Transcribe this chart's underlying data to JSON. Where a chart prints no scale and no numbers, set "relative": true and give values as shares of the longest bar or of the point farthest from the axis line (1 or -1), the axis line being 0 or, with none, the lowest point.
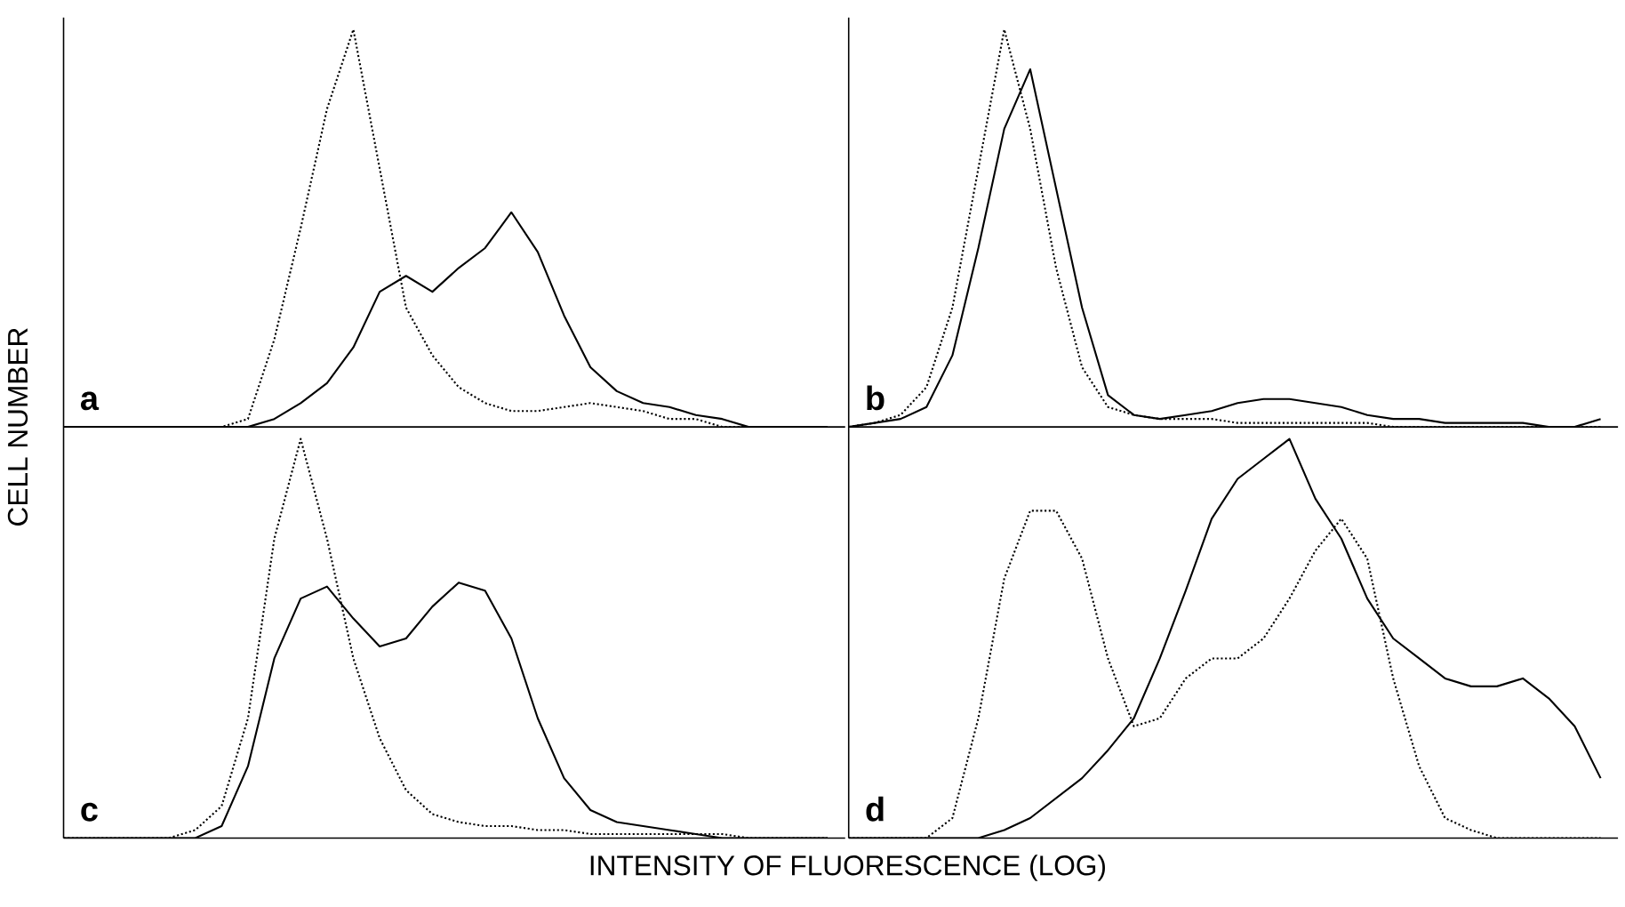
{
  "chart_data": [
    {
      "type": "line",
      "relative": true,
      "ylabel": "CELL NUMBER",
      "annotations": [
        "a"
      ],
      "categories": [
        null,
        null,
        null,
        null,
        null,
        null,
        null,
        null,
        null,
        null,
        null,
        null,
        null,
        null,
        null,
        null,
        null,
        null,
        null,
        null,
        null,
        null,
        null,
        null,
        null,
        null,
        null,
        null,
        null,
        null
      ],
      "series": [
        {
          "color": "#000000",
          "line_style": "dotted",
          "values": [
            0,
            0,
            0,
            0,
            0,
            0,
            0,
            0.02,
            0.22,
            0.5,
            0.8,
            1.0,
            0.65,
            0.3,
            0.18,
            0.1,
            0.06,
            0.04,
            0.04,
            0.05,
            0.06,
            0.05,
            0.04,
            0.02,
            0.02,
            0,
            0,
            0,
            0,
            0
          ]
        },
        {
          "color": "#000000",
          "line_style": "solid",
          "values": [
            0,
            0,
            0,
            0,
            0,
            0,
            0,
            0,
            0.02,
            0.06,
            0.11,
            0.2,
            0.34,
            0.38,
            0.34,
            0.4,
            0.45,
            0.54,
            0.44,
            0.28,
            0.15,
            0.09,
            0.06,
            0.05,
            0.03,
            0.02,
            0,
            0,
            0,
            0
          ]
        }
      ]
    },
    {
      "type": "line",
      "relative": true,
      "annotations": [
        "b"
      ],
      "categories": [
        null,
        null,
        null,
        null,
        null,
        null,
        null,
        null,
        null,
        null,
        null,
        null,
        null,
        null,
        null,
        null,
        null,
        null,
        null,
        null,
        null,
        null,
        null,
        null,
        null,
        null,
        null,
        null,
        null,
        null
      ],
      "series": [
        {
          "color": "#000000",
          "line_style": "dotted",
          "values": [
            0,
            0.01,
            0.03,
            0.1,
            0.3,
            0.65,
            1.0,
            0.75,
            0.4,
            0.15,
            0.05,
            0.03,
            0.02,
            0.02,
            0.02,
            0.01,
            0.01,
            0.01,
            0.01,
            0.01,
            0.01,
            0,
            0,
            0,
            0,
            0,
            0,
            0,
            0,
            0
          ]
        },
        {
          "color": "#000000",
          "line_style": "solid",
          "values": [
            0,
            0.01,
            0.02,
            0.05,
            0.18,
            0.45,
            0.75,
            0.9,
            0.6,
            0.3,
            0.08,
            0.03,
            0.02,
            0.03,
            0.04,
            0.06,
            0.07,
            0.07,
            0.06,
            0.05,
            0.03,
            0.02,
            0.02,
            0.01,
            0.01,
            0.01,
            0.01,
            0,
            0,
            0.02
          ]
        }
      ]
    },
    {
      "type": "line",
      "relative": true,
      "xlabel": "INTENSITY OF FLUORESCENCE (LOG)",
      "annotations": [
        "c"
      ],
      "categories": [
        null,
        null,
        null,
        null,
        null,
        null,
        null,
        null,
        null,
        null,
        null,
        null,
        null,
        null,
        null,
        null,
        null,
        null,
        null,
        null,
        null,
        null,
        null,
        null,
        null,
        null,
        null,
        null,
        null,
        null
      ],
      "series": [
        {
          "color": "#000000",
          "line_style": "dotted",
          "values": [
            0,
            0,
            0,
            0,
            0,
            0.02,
            0.08,
            0.3,
            0.75,
            1.0,
            0.75,
            0.45,
            0.25,
            0.12,
            0.06,
            0.04,
            0.03,
            0.03,
            0.02,
            0.02,
            0.01,
            0.01,
            0.01,
            0.01,
            0.01,
            0.01,
            0,
            0,
            0,
            0
          ]
        },
        {
          "color": "#000000",
          "line_style": "solid",
          "values": [
            0,
            0,
            0,
            0,
            0,
            0,
            0.03,
            0.18,
            0.45,
            0.6,
            0.63,
            0.55,
            0.48,
            0.5,
            0.58,
            0.64,
            0.62,
            0.5,
            0.3,
            0.15,
            0.07,
            0.04,
            0.03,
            0.02,
            0.01,
            0,
            0,
            0,
            0,
            0
          ]
        }
      ]
    },
    {
      "type": "line",
      "relative": true,
      "annotations": [
        "d"
      ],
      "categories": [
        null,
        null,
        null,
        null,
        null,
        null,
        null,
        null,
        null,
        null,
        null,
        null,
        null,
        null,
        null,
        null,
        null,
        null,
        null,
        null,
        null,
        null,
        null,
        null,
        null,
        null,
        null,
        null,
        null,
        null
      ],
      "series": [
        {
          "color": "#000000",
          "line_style": "dotted",
          "values": [
            0,
            0,
            0,
            0,
            0.05,
            0.3,
            0.65,
            0.82,
            0.82,
            0.7,
            0.45,
            0.28,
            0.3,
            0.4,
            0.45,
            0.45,
            0.5,
            0.6,
            0.72,
            0.8,
            0.7,
            0.4,
            0.18,
            0.05,
            0.02,
            0,
            0,
            0,
            0,
            0
          ]
        },
        {
          "color": "#000000",
          "line_style": "solid",
          "values": [
            0,
            0,
            0,
            0,
            0,
            0,
            0.02,
            0.05,
            0.1,
            0.15,
            0.22,
            0.3,
            0.45,
            0.62,
            0.8,
            0.9,
            0.95,
            1.0,
            0.85,
            0.75,
            0.6,
            0.5,
            0.45,
            0.4,
            0.38,
            0.38,
            0.4,
            0.35,
            0.28,
            0.15
          ]
        }
      ]
    }
  ]
}
